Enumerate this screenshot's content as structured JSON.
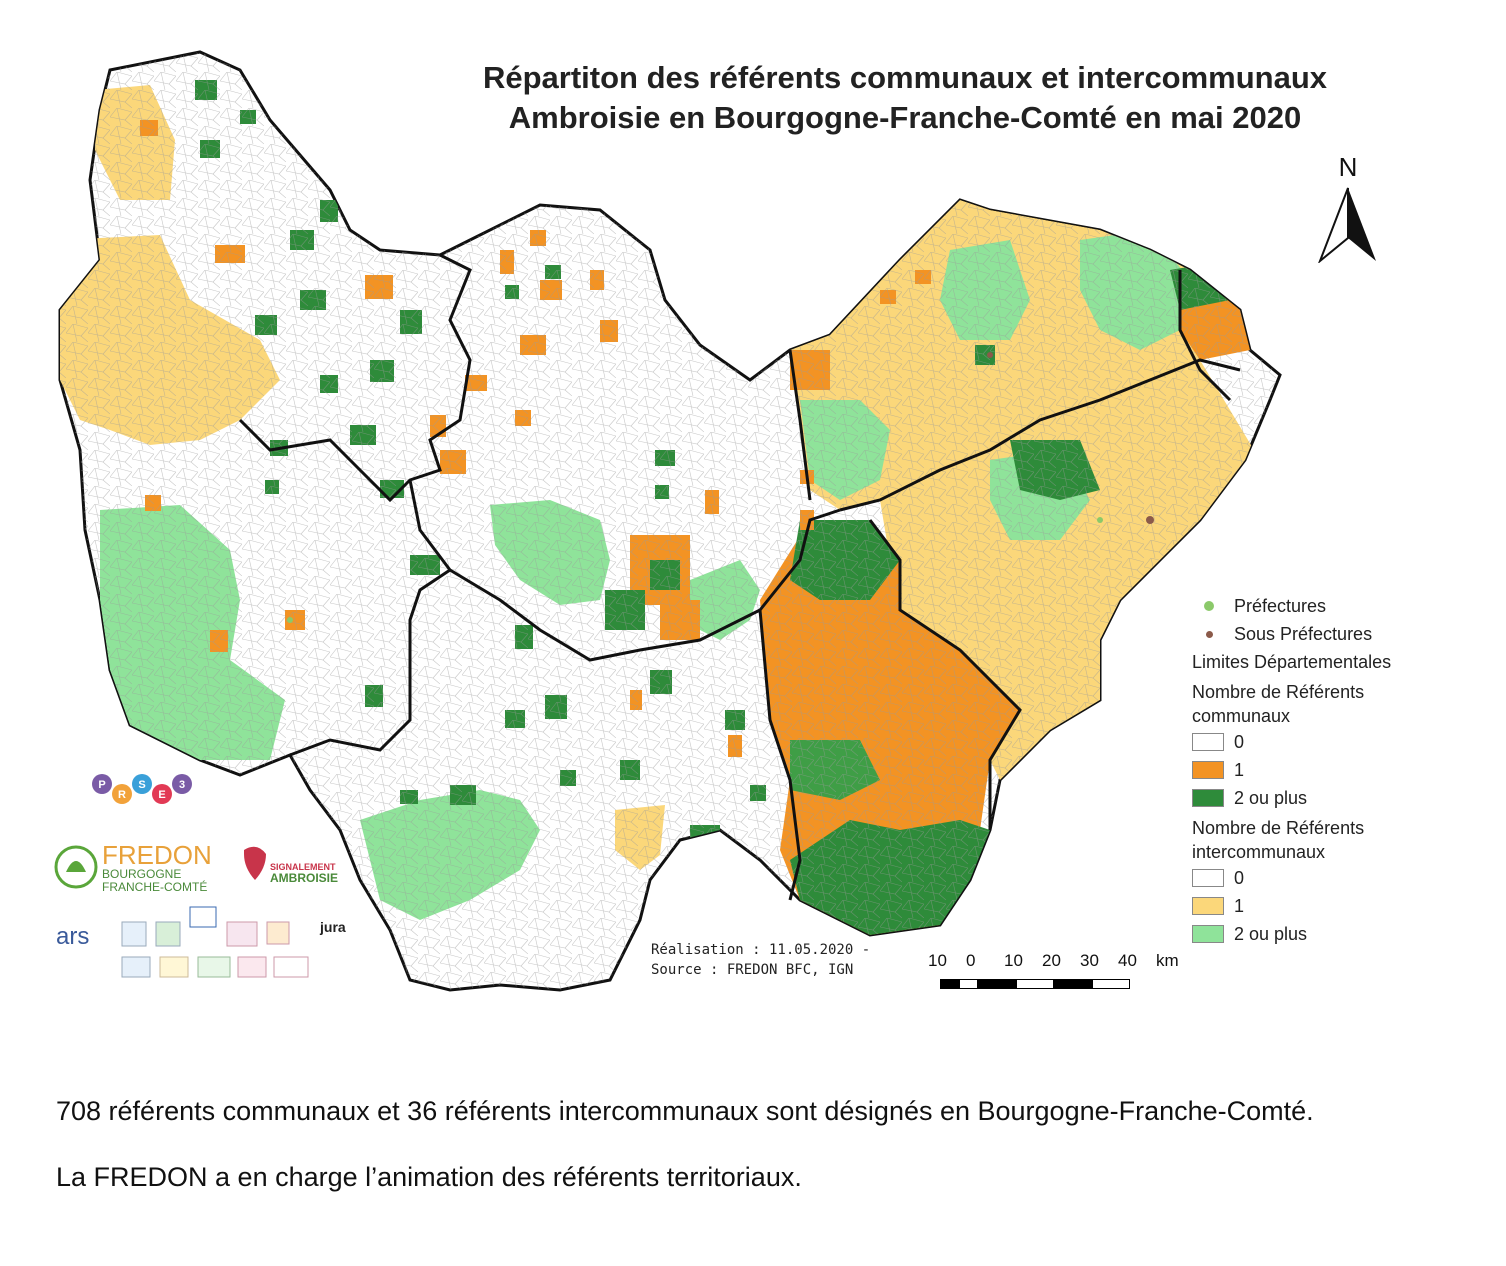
{
  "map": {
    "title_line1": "Répartiton des référents communaux et intercommunaux",
    "title_line2": "Ambroisie en Bourgogne-Franche-Comté en mai 2020",
    "north_label": "N",
    "credits_line1": "Réalisation : 11.05.2020 -",
    "credits_line2": "Source : FREDON BFC, IGN",
    "scale_labels": [
      "10",
      "0",
      "10",
      "20",
      "30",
      "40",
      "km"
    ]
  },
  "legend": {
    "prefectures": "Préfectures",
    "sous_prefectures": "Sous Préfectures",
    "limites": "Limites Départementales",
    "communaux_title_1": "Nombre de Référents",
    "communaux_title_2": "communaux",
    "communaux_0": "0",
    "communaux_1": "1",
    "communaux_2": "2 ou plus",
    "inter_title_1": "Nombre de Référents",
    "inter_title_2": "intercommunaux",
    "inter_0": "0",
    "inter_1": "1",
    "inter_2": "2 ou plus"
  },
  "colors": {
    "communaux_0": "#ffffff",
    "communaux_1": "#f39323",
    "communaux_2": "#2e8b3a",
    "inter_0": "#ffffff",
    "inter_1": "#fbd77a",
    "inter_2": "#8fe39a",
    "prefecture_dot": "#8bc96a",
    "sous_prefecture_dot": "#8b5a4a",
    "border": "#111111"
  },
  "logos": {
    "fredon_1": "FREDON",
    "fredon_2": "BOURGOGNE",
    "fredon_3": "FRANCHE-COMTÉ",
    "signalement_1": "SIGNALEMENT",
    "signalement_2": "AMBROISIE",
    "ars": "ars",
    "jura": "jura",
    "pe_letters": [
      "P",
      "R",
      "S",
      "E",
      "3"
    ]
  },
  "caption": {
    "line1": "708 référents communaux et 36 référents intercommunaux sont désignés en Bourgogne-Franche-Comté.",
    "line2": "La FREDON a en charge l’animation des référents territoriaux."
  }
}
